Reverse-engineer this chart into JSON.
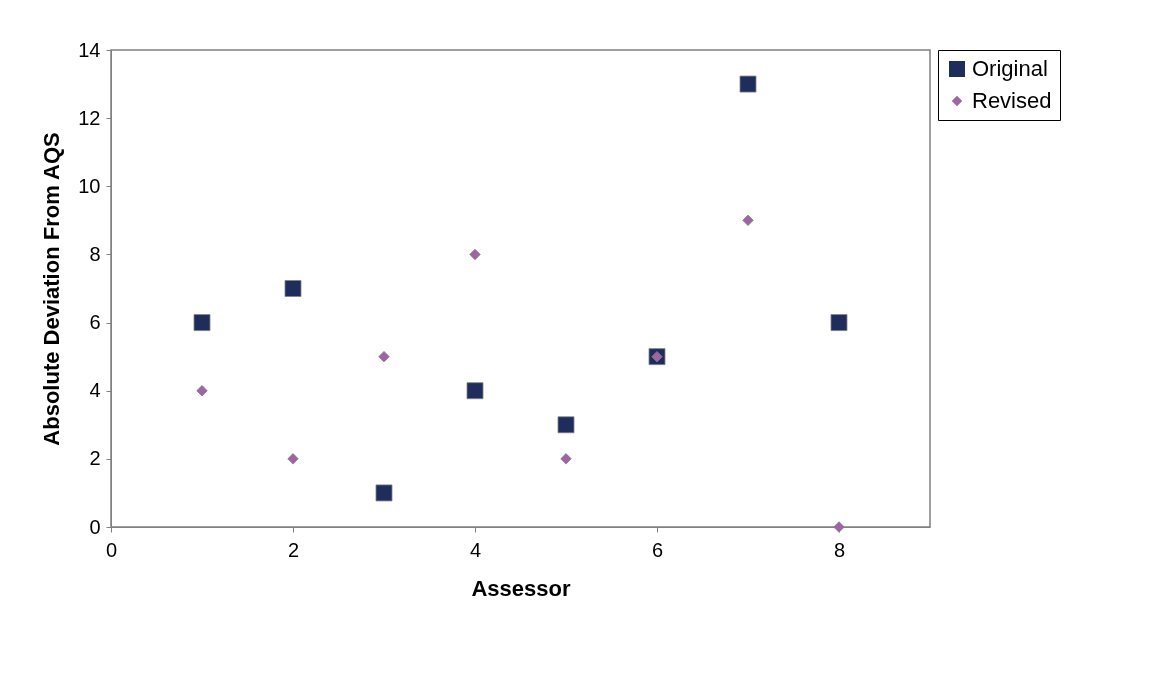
{
  "chart_data": {
    "type": "scatter",
    "xlabel": "Assessor",
    "ylabel": "Absolute Deviation From AQS",
    "x": [
      1,
      2,
      3,
      4,
      5,
      6,
      7,
      8
    ],
    "series": [
      {
        "name": "Original",
        "color": "#1f2d5c",
        "marker": "square",
        "values": [
          6,
          7,
          1,
          4,
          3,
          5,
          13,
          6
        ]
      },
      {
        "name": "Revised",
        "color": "#a064a6",
        "marker": "diamond",
        "values": [
          4,
          2,
          5,
          8,
          2,
          5,
          9,
          0
        ]
      }
    ],
    "xlim": [
      0,
      9
    ],
    "xticks": [
      0,
      2,
      4,
      6,
      8
    ],
    "ylim": [
      0,
      14
    ],
    "yticks": [
      0,
      2,
      4,
      6,
      8,
      10,
      12,
      14
    ],
    "grid": false,
    "legend": "right"
  }
}
